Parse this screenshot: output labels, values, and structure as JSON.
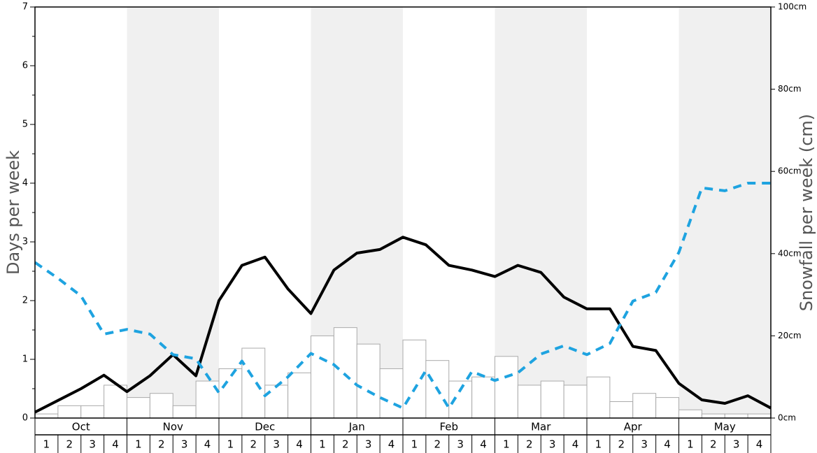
{
  "chart_data": {
    "type": "bar+line",
    "left_axis": {
      "label": "Days per week",
      "ylim": [
        0,
        7
      ],
      "ticks": [
        "0",
        "1",
        "2",
        "3",
        "4",
        "5",
        "6",
        "7"
      ]
    },
    "right_axis": {
      "label": "Snowfall per week (cm)",
      "ylim": [
        0,
        100
      ],
      "ticks": [
        "0cm",
        "20cm",
        "40cm",
        "60cm",
        "80cm",
        "100cm"
      ]
    },
    "months": [
      "Oct",
      "Nov",
      "Dec",
      "Jan",
      "Feb",
      "Mar",
      "Apr",
      "May"
    ],
    "weeks": [
      "1",
      "2",
      "3",
      "4"
    ],
    "shaded_months": [
      "Nov",
      "Jan",
      "Mar",
      "May"
    ],
    "series": [
      {
        "kind": "bar",
        "axis": "right",
        "color": "#ffffff",
        "stroke": "#aaaaaa",
        "values": [
          1,
          3,
          3,
          8,
          5,
          6,
          3,
          9,
          12,
          17,
          8,
          11,
          20,
          22,
          18,
          12,
          19,
          14,
          9,
          10,
          15,
          8,
          9,
          8,
          10,
          4,
          6,
          5,
          2,
          1,
          1,
          1
        ]
      },
      {
        "kind": "line",
        "axis": "left",
        "color": "#000000",
        "style": "solid",
        "values": [
          0.1,
          0.3,
          0.5,
          0.73,
          0.45,
          0.72,
          1.08,
          0.72,
          2.0,
          2.6,
          2.74,
          2.2,
          1.78,
          2.52,
          2.81,
          2.87,
          3.08,
          2.95,
          2.6,
          2.52,
          2.41,
          2.6,
          2.48,
          2.06,
          1.86,
          1.86,
          1.22,
          1.15,
          0.59,
          0.31,
          0.25,
          0.38,
          0.17
        ]
      },
      {
        "kind": "line",
        "axis": "left",
        "color": "#1ea3e0",
        "style": "dashed",
        "values": [
          2.65,
          2.38,
          2.08,
          1.43,
          1.51,
          1.43,
          1.08,
          1.01,
          0.43,
          0.97,
          0.38,
          0.7,
          1.1,
          0.91,
          0.56,
          0.35,
          0.17,
          0.81,
          0.17,
          0.79,
          0.64,
          0.77,
          1.09,
          1.23,
          1.08,
          1.27,
          1.99,
          2.14,
          2.82,
          3.92,
          3.87,
          4.0,
          4.0
        ]
      }
    ],
    "grid": false,
    "legend": "none"
  },
  "colors": {
    "shade": "#f0f0f0",
    "bar_stroke": "#aaaaaa",
    "days_line": "#000000",
    "snow_line": "#1ea3e0"
  }
}
